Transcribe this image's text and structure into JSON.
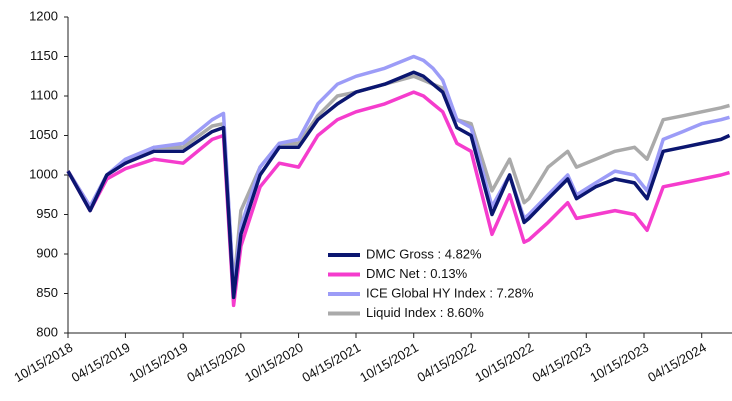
{
  "chart_data": {
    "type": "line",
    "x": [
      "10/15/2018",
      "12/24/2018",
      "02/15/2019",
      "04/15/2019",
      "07/15/2019",
      "10/15/2019",
      "01/15/2020",
      "02/20/2020",
      "03/23/2020",
      "04/15/2020",
      "06/15/2020",
      "08/15/2020",
      "10/15/2020",
      "12/15/2020",
      "02/15/2021",
      "04/15/2021",
      "07/15/2021",
      "10/15/2021",
      "11/15/2021",
      "12/15/2021",
      "01/15/2022",
      "03/01/2022",
      "04/15/2022",
      "06/20/2022",
      "08/15/2022",
      "09/30/2022",
      "10/15/2022",
      "12/15/2022",
      "02/15/2023",
      "03/15/2023",
      "05/15/2023",
      "07/15/2023",
      "09/15/2023",
      "10/25/2023",
      "12/15/2023",
      "02/15/2024",
      "04/15/2024",
      "06/15/2024",
      "07/12/2024"
    ],
    "series": [
      {
        "name": "DMC Gross : 4.82%",
        "color": "#0b1670",
        "values": [
          1005,
          955,
          1000,
          1015,
          1030,
          1030,
          1055,
          1060,
          845,
          925,
          1000,
          1035,
          1035,
          1070,
          1090,
          1105,
          1115,
          1130,
          1125,
          1115,
          1105,
          1060,
          1050,
          950,
          1000,
          940,
          945,
          970,
          995,
          970,
          985,
          995,
          990,
          970,
          1030,
          1035,
          1040,
          1045,
          1050
        ]
      },
      {
        "name": "DMC Net : 0.13%",
        "color": "#f53ccd",
        "values": [
          1005,
          955,
          995,
          1008,
          1020,
          1015,
          1045,
          1050,
          835,
          910,
          985,
          1015,
          1010,
          1050,
          1070,
          1080,
          1090,
          1105,
          1100,
          1090,
          1080,
          1040,
          1030,
          925,
          975,
          915,
          918,
          940,
          965,
          945,
          950,
          955,
          950,
          930,
          985,
          990,
          995,
          1000,
          1003
        ]
      },
      {
        "name": "ICE Global HY Index : 7.28%",
        "color": "#9c9cf7",
        "values": [
          1005,
          960,
          1000,
          1020,
          1035,
          1040,
          1070,
          1078,
          855,
          935,
          1010,
          1040,
          1045,
          1090,
          1115,
          1125,
          1135,
          1150,
          1145,
          1135,
          1120,
          1070,
          1060,
          960,
          1000,
          945,
          950,
          975,
          1000,
          975,
          990,
          1005,
          1000,
          980,
          1045,
          1055,
          1065,
          1070,
          1073
        ]
      },
      {
        "name": "Liquid Index : 8.60%",
        "color": "#aaaaaa",
        "values": [
          1005,
          960,
          1000,
          1018,
          1035,
          1035,
          1062,
          1065,
          860,
          955,
          1010,
          1040,
          1040,
          1075,
          1100,
          1105,
          1115,
          1125,
          1120,
          1115,
          1110,
          1070,
          1065,
          980,
          1020,
          965,
          970,
          1010,
          1030,
          1010,
          1020,
          1030,
          1035,
          1020,
          1070,
          1075,
          1080,
          1085,
          1088
        ]
      }
    ],
    "xlim": [
      "10/15/2018",
      "07/20/2024"
    ],
    "xticks": [
      "10/15/2018",
      "04/15/2019",
      "10/15/2019",
      "04/15/2020",
      "10/15/2020",
      "04/15/2021",
      "10/15/2021",
      "04/15/2022",
      "10/15/2022",
      "04/15/2023",
      "10/15/2023",
      "04/15/2024"
    ],
    "ylim": [
      800,
      1200
    ],
    "yticks": [
      800,
      850,
      900,
      950,
      1000,
      1050,
      1100,
      1150,
      1200
    ]
  }
}
